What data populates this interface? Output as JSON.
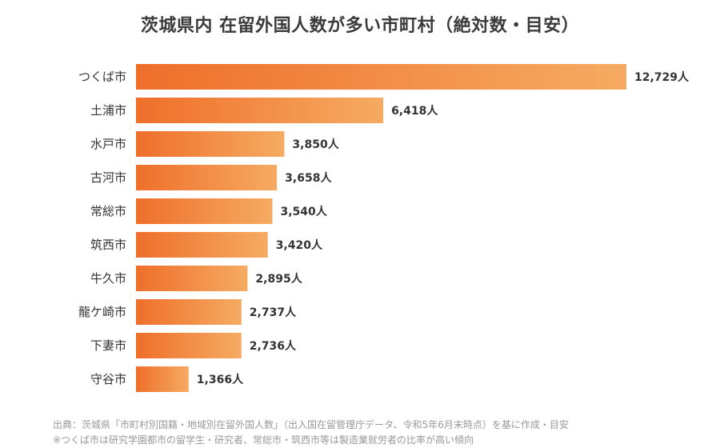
{
  "chart_data": {
    "type": "bar",
    "orientation": "horizontal",
    "title": "茨城県内 在留外国人数が多い市町村（絶対数・目安）",
    "categories": [
      "つくば市",
      "土浦市",
      "水戸市",
      "古河市",
      "常総市",
      "筑西市",
      "牛久市",
      "龍ケ崎市",
      "下妻市",
      "守谷市"
    ],
    "values": [
      12729,
      6418,
      3850,
      3658,
      3540,
      3420,
      2895,
      2737,
      2736,
      1366
    ],
    "value_labels": [
      "12,729人",
      "6,418人",
      "3,850人",
      "3,658人",
      "3,540人",
      "3,420人",
      "2,895人",
      "2,737人",
      "2,736人",
      "1,366人"
    ],
    "unit": "人",
    "xlim": [
      0,
      12729
    ],
    "grid": false,
    "legend": "none",
    "colors": {
      "bar_start": "#ee6f2b",
      "bar_end": "#f6ab62"
    }
  },
  "notes": {
    "source": "出典：茨城県「市町村別国籍・地域別在留外国人数」（出入国在留管理庁データ、令和5年6月末時点）を基に作成・目安",
    "remark": "※つくば市は研究学園都市の留学生・研究者、常総市・筑西市等は製造業就労者の比率が高い傾向"
  }
}
